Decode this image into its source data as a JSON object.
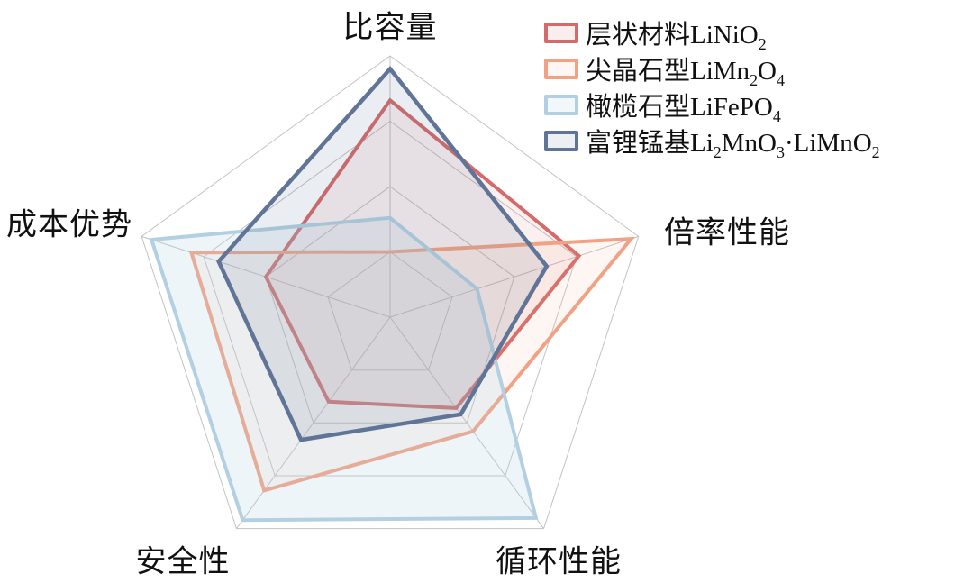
{
  "chart_data": {
    "type": "radar",
    "title": "",
    "axes": [
      {
        "label": "比容量"
      },
      {
        "label": "倍率性能"
      },
      {
        "label": "循环性能"
      },
      {
        "label": "安全性"
      },
      {
        "label": "成本优势"
      }
    ],
    "scale": {
      "min": 0,
      "max": 100,
      "grid_rings": 4,
      "ring_fractions": [
        0.25,
        0.5,
        0.75,
        1.0
      ]
    },
    "grid_color": "#c3c3c3",
    "legend_position": "top-right",
    "series": [
      {
        "name": "层状材料LiNiO_{2}",
        "color": "#d56a6a",
        "fill": "rgba(213,103,103,0.10)",
        "swatch_fill": "#faeded",
        "values": [
          83,
          76,
          43,
          40,
          50
        ]
      },
      {
        "name": "尖晶石型LiMn_{2}O_{4}",
        "color": "#f2a284",
        "fill": "rgba(242,162,132,0.10)",
        "swatch_fill": "#fdf6f3",
        "values": [
          25,
          97,
          54,
          82,
          80
        ]
      },
      {
        "name": "橄榄石型LiFePO_{4}",
        "color": "#b3d0e2",
        "fill": "rgba(179,208,226,0.22)",
        "swatch_fill": "#f2f7fa",
        "values": [
          38,
          35,
          95,
          96,
          96
        ]
      },
      {
        "name": "富锂锰基Li_{2}MnO_{3}·LiMnO_{2}",
        "color": "#5f7496",
        "fill": "rgba(95,116,150,0.13)",
        "swatch_fill": "#edeff3",
        "values": [
          95,
          63,
          46,
          58,
          69
        ]
      }
    ]
  }
}
